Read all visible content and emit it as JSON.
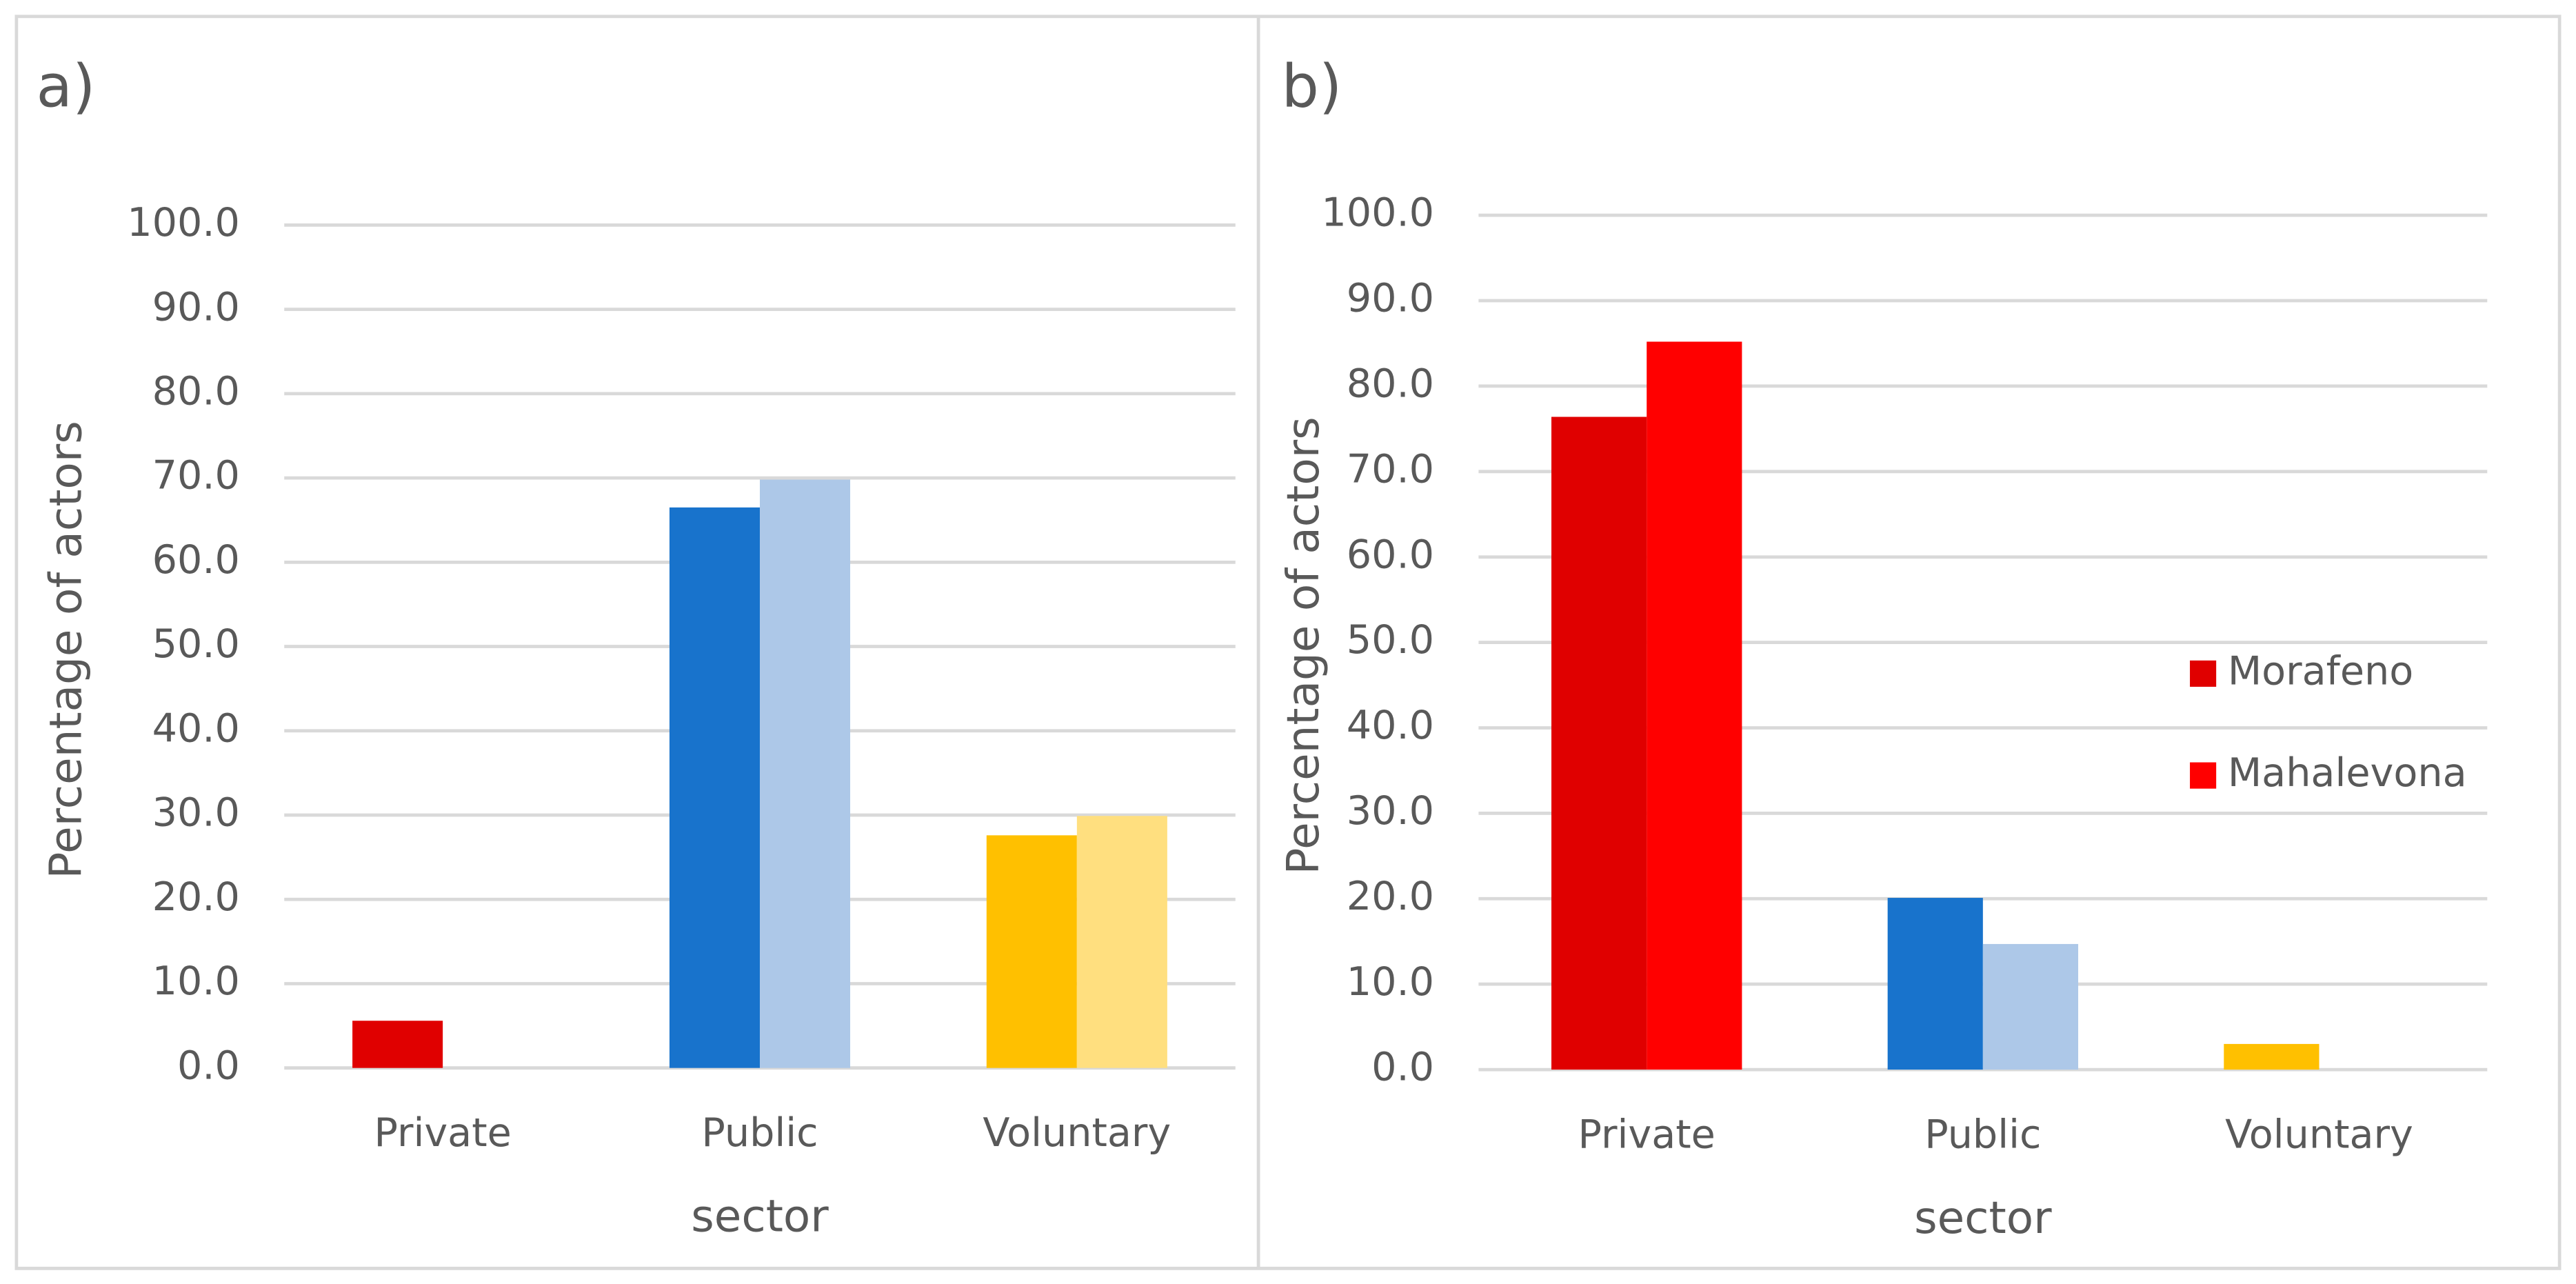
{
  "chart_data": [
    {
      "type": "bar",
      "title": "a)",
      "xlabel": "sector",
      "ylabel": "Percentage of actors",
      "categories": [
        "Private",
        "Public",
        "Voluntary"
      ],
      "series": [
        {
          "colors": [
            "#e00000",
            "#1873cc",
            "#ffc000"
          ],
          "values": [
            5.6,
            66.5,
            27.6
          ]
        },
        {
          "colors": [
            "#ff0000",
            "#adc8e8",
            "#ffdf7f"
          ],
          "values": [
            0,
            69.8,
            29.9
          ]
        }
      ],
      "ylim": [
        0,
        100
      ],
      "yticks": [
        {
          "value": 0,
          "label": "0.0"
        },
        {
          "value": 10,
          "label": "10.0"
        },
        {
          "value": 20,
          "label": "20.0"
        },
        {
          "value": 30,
          "label": "30.0"
        },
        {
          "value": 40,
          "label": "40.0"
        },
        {
          "value": 50,
          "label": "50.0"
        },
        {
          "value": 60,
          "label": "60.0"
        },
        {
          "value": 70,
          "label": "70.0"
        },
        {
          "value": 80,
          "label": "80.0"
        },
        {
          "value": 90,
          "label": "90.0"
        },
        {
          "value": 100,
          "label": "100.0"
        }
      ],
      "grid": true
    },
    {
      "type": "bar",
      "title": "b)",
      "xlabel": "sector",
      "ylabel": "Percentage of actors",
      "categories": [
        "Private",
        "Public",
        "Voluntary"
      ],
      "series": [
        {
          "name": "Morafeno",
          "color": "#e00000",
          "colors": [
            "#e00000",
            "#1873cc",
            "#ffc000"
          ],
          "values": [
            76.4,
            20.1,
            3.0
          ]
        },
        {
          "name": "Mahalevona",
          "color": "#ff0000",
          "colors": [
            "#ff0000",
            "#adc8e8",
            "#ffdf7f"
          ],
          "values": [
            85.2,
            14.7,
            0
          ]
        }
      ],
      "ylim": [
        0,
        100
      ],
      "yticks": [
        {
          "value": 0,
          "label": "0.0"
        },
        {
          "value": 10,
          "label": "10.0"
        },
        {
          "value": 20,
          "label": "20.0"
        },
        {
          "value": 30,
          "label": "30.0"
        },
        {
          "value": 40,
          "label": "40.0"
        },
        {
          "value": 50,
          "label": "50.0"
        },
        {
          "value": 60,
          "label": "60.0"
        },
        {
          "value": 70,
          "label": "70.0"
        },
        {
          "value": 80,
          "label": "80.0"
        },
        {
          "value": 90,
          "label": "90.0"
        },
        {
          "value": 100,
          "label": "100.0"
        }
      ],
      "grid": true,
      "legend": "right"
    }
  ]
}
